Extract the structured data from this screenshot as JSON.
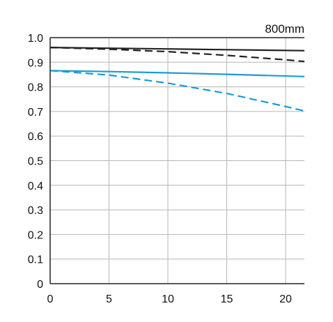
{
  "chart_data": {
    "type": "line",
    "title": "800mm",
    "xlabel": "",
    "ylabel": "",
    "xlim": [
      0,
      21.6
    ],
    "ylim": [
      0,
      1.0
    ],
    "x_ticks": [
      0,
      5,
      10,
      15,
      20
    ],
    "x_tick_labels": [
      "0",
      "5",
      "10",
      "15",
      "20"
    ],
    "y_ticks": [
      0,
      0.1,
      0.2,
      0.3,
      0.4,
      0.5,
      0.6,
      0.7,
      0.8,
      0.9,
      1.0
    ],
    "y_tick_labels": [
      "0",
      "0.1",
      "0.2",
      "0.3",
      "0.4",
      "0.5",
      "0.6",
      "0.7",
      "0.8",
      "0.9",
      "1.0"
    ],
    "grid": true,
    "series": [
      {
        "color": "#222222",
        "dash": false,
        "x": [
          0,
          5,
          10,
          15,
          21.6
        ],
        "y": [
          0.96,
          0.957,
          0.954,
          0.951,
          0.947
        ]
      },
      {
        "color": "#222222",
        "dash": true,
        "x": [
          0,
          5,
          10,
          15,
          20,
          21.6
        ],
        "y": [
          0.96,
          0.953,
          0.943,
          0.928,
          0.91,
          0.903
        ]
      },
      {
        "color": "#1a9ad9",
        "dash": false,
        "x": [
          0,
          5,
          10,
          15,
          21.6
        ],
        "y": [
          0.866,
          0.862,
          0.857,
          0.851,
          0.842
        ]
      },
      {
        "color": "#1a9ad9",
        "dash": true,
        "x": [
          0,
          5,
          10,
          15,
          20,
          21.6
        ],
        "y": [
          0.866,
          0.848,
          0.815,
          0.773,
          0.72,
          0.702
        ]
      }
    ]
  }
}
